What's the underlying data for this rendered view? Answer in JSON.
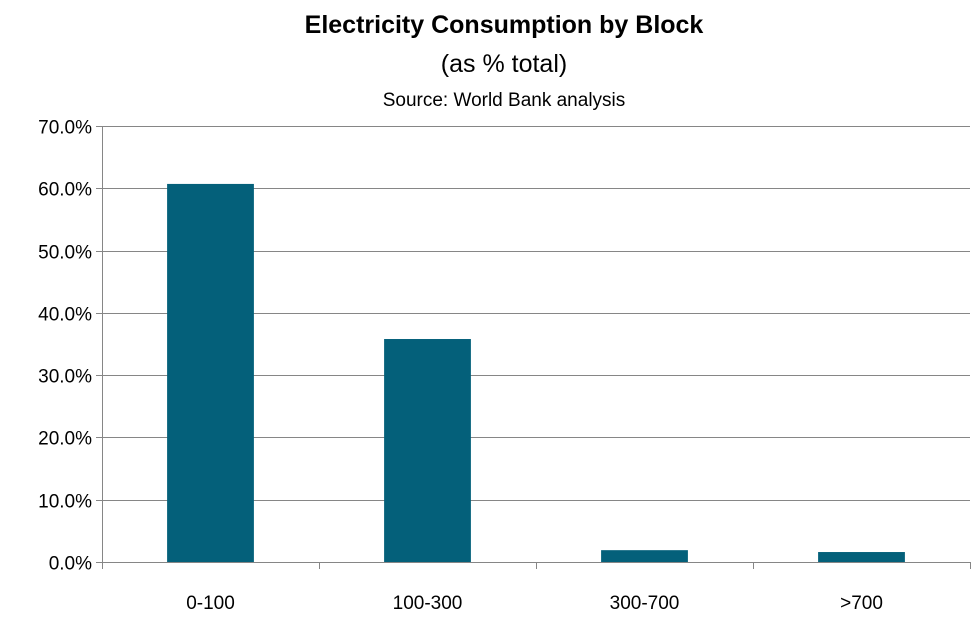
{
  "chart_data": {
    "type": "bar",
    "title": "Electricity Consumption by Block",
    "subtitle": "(as % total)",
    "source": "Source: World Bank analysis",
    "categories": [
      "0-100",
      "100-300",
      "300-700",
      ">700"
    ],
    "values": [
      60.7,
      35.8,
      1.9,
      1.6
    ],
    "ylim": [
      0,
      70
    ],
    "yticks": [
      0,
      10,
      20,
      30,
      40,
      50,
      60,
      70
    ],
    "ytick_labels": [
      "0.0%",
      "10.0%",
      "20.0%",
      "30.0%",
      "40.0%",
      "50.0%",
      "60.0%",
      "70.0%"
    ],
    "xlabel": "",
    "ylabel": "",
    "grid": true,
    "legend": "none",
    "bar_color": "#04607A"
  }
}
